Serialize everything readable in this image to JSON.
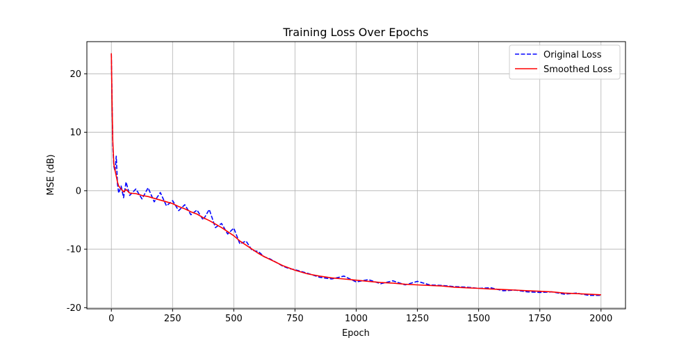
{
  "chart_data": {
    "type": "line",
    "title": "Training Loss Over Epochs",
    "xlabel": "Epoch",
    "ylabel": "MSE (dB)",
    "xlim": [
      -100,
      2100
    ],
    "ylim": [
      -20.2,
      25.5
    ],
    "xticks": [
      0,
      250,
      500,
      750,
      1000,
      1250,
      1500,
      1750,
      2000
    ],
    "yticks": [
      20,
      10,
      0,
      -10,
      -20
    ],
    "grid": true,
    "legend_position": "top-right",
    "series": [
      {
        "name": "Original Loss",
        "color": "#0000ff",
        "style": "dashed",
        "x": [
          0,
          3,
          6,
          10,
          15,
          20,
          25,
          30,
          40,
          50,
          60,
          75,
          100,
          125,
          150,
          175,
          200,
          225,
          250,
          275,
          300,
          325,
          350,
          375,
          400,
          425,
          450,
          475,
          500,
          525,
          550,
          575,
          600,
          625,
          650,
          675,
          700,
          725,
          750,
          800,
          850,
          900,
          950,
          1000,
          1050,
          1100,
          1150,
          1200,
          1250,
          1300,
          1350,
          1400,
          1450,
          1500,
          1550,
          1600,
          1650,
          1700,
          1750,
          1800,
          1850,
          1900,
          1950,
          2000
        ],
        "y": [
          23.4,
          15.0,
          7.6,
          4.2,
          3.3,
          5.9,
          1.2,
          -0.4,
          0.8,
          -1.2,
          1.5,
          -0.8,
          0.3,
          -1.4,
          0.5,
          -1.9,
          -0.3,
          -2.6,
          -1.7,
          -3.4,
          -2.4,
          -4.1,
          -3.3,
          -5.0,
          -3.2,
          -6.3,
          -5.6,
          -7.4,
          -6.4,
          -9.1,
          -8.6,
          -10.2,
          -10.4,
          -11.3,
          -11.7,
          -12.3,
          -12.9,
          -13.3,
          -13.5,
          -14.1,
          -14.8,
          -15.1,
          -14.6,
          -15.6,
          -15.2,
          -15.9,
          -15.4,
          -16.1,
          -15.5,
          -16.1,
          -16.2,
          -16.4,
          -16.5,
          -16.7,
          -16.6,
          -17.1,
          -17.0,
          -17.3,
          -17.4,
          -17.3,
          -17.7,
          -17.5,
          -17.9,
          -17.9
        ]
      },
      {
        "name": "Smoothed Loss",
        "color": "#ff0000",
        "style": "solid",
        "x": [
          0,
          3,
          6,
          10,
          15,
          20,
          25,
          30,
          40,
          50,
          60,
          75,
          100,
          125,
          150,
          175,
          200,
          225,
          250,
          275,
          300,
          325,
          350,
          375,
          400,
          425,
          450,
          475,
          500,
          525,
          550,
          575,
          600,
          625,
          650,
          675,
          700,
          725,
          750,
          800,
          850,
          900,
          950,
          1000,
          1050,
          1100,
          1150,
          1200,
          1250,
          1300,
          1350,
          1400,
          1450,
          1500,
          1550,
          1600,
          1650,
          1700,
          1750,
          1800,
          1850,
          1900,
          1950,
          2000
        ],
        "y": [
          23.5,
          14.5,
          8.5,
          4.5,
          3.5,
          2.5,
          1.5,
          0.8,
          0.3,
          -0.2,
          0.2,
          -0.4,
          -0.5,
          -0.8,
          -1.0,
          -1.3,
          -1.6,
          -1.9,
          -2.2,
          -2.7,
          -3.1,
          -3.6,
          -4.0,
          -4.6,
          -5.1,
          -5.7,
          -6.3,
          -7.0,
          -7.7,
          -8.6,
          -9.3,
          -10.0,
          -10.7,
          -11.3,
          -11.8,
          -12.3,
          -12.8,
          -13.2,
          -13.6,
          -14.2,
          -14.6,
          -14.9,
          -15.1,
          -15.3,
          -15.5,
          -15.7,
          -15.8,
          -16.0,
          -16.1,
          -16.2,
          -16.3,
          -16.5,
          -16.6,
          -16.7,
          -16.8,
          -16.9,
          -17.0,
          -17.1,
          -17.2,
          -17.3,
          -17.5,
          -17.6,
          -17.7,
          -17.8
        ]
      }
    ]
  }
}
